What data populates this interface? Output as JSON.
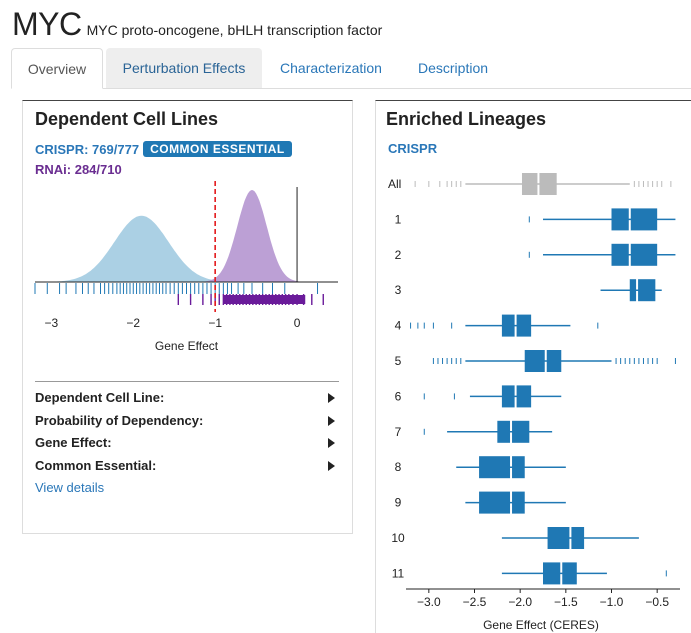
{
  "header": {
    "symbol": "MYC",
    "name": "MYC proto-oncogene, bHLH transcription factor"
  },
  "tabs": [
    {
      "label": "Overview",
      "active": true
    },
    {
      "label": "Perturbation Effects",
      "active": false
    },
    {
      "label": "Characterization",
      "active": false
    },
    {
      "label": "Description",
      "active": false
    }
  ],
  "left_panel": {
    "title": "Dependent Cell Lines",
    "crispr_text": "CRISPR: 769/777",
    "badge": "COMMON ESSENTIAL",
    "rnai_text": "RNAi: 284/710",
    "details": [
      {
        "label": "Dependent Cell Line:"
      },
      {
        "label": "Probability of Dependency:"
      },
      {
        "label": "Gene Effect:"
      },
      {
        "label": "Common Essential:"
      }
    ],
    "view_details": "View details"
  },
  "right_panel": {
    "title": "Enriched Lineages",
    "crispr_label": "CRISPR"
  },
  "colors": {
    "crispr": "#1f78b4",
    "crispr_density": "#a6cee3",
    "rnai": "#6a1b9a",
    "rnai_density": "#b08fce",
    "threshold": "#e31a1c",
    "all_box": "#bbbbbb"
  },
  "chart_data": [
    {
      "type": "area",
      "xlabel": "Gene Effect",
      "xlim": [
        -3.2,
        0.5
      ],
      "xticks": [
        -3,
        -2,
        -1,
        0
      ],
      "xtick_labels": [
        "−3",
        "−2",
        "−1",
        "0"
      ],
      "threshold": -1,
      "series": [
        {
          "name": "CRISPR",
          "peak": -1.9,
          "sd": 0.33,
          "height": 0.72
        },
        {
          "name": "RNAi",
          "peak": -0.55,
          "sd": 0.18,
          "height": 1.0
        }
      ],
      "rugs": {
        "crispr": [
          -3.2,
          -3.05,
          -2.9,
          -2.82,
          -2.7,
          -2.62,
          -2.55,
          -2.48,
          -2.4,
          -2.35,
          -2.3,
          -2.25,
          -2.2,
          -2.16,
          -2.12,
          -2.08,
          -2.04,
          -2.0,
          -1.96,
          -1.92,
          -1.88,
          -1.84,
          -1.8,
          -1.76,
          -1.72,
          -1.68,
          -1.64,
          -1.6,
          -1.55,
          -1.5,
          -1.45,
          -1.4,
          -1.35,
          -1.3,
          -1.25,
          -1.2,
          -1.15,
          -1.1,
          -1.05,
          -1.0,
          -0.95,
          -0.9,
          -0.85,
          -0.8,
          -0.72,
          -0.65,
          -0.55,
          -0.42,
          -0.3,
          -0.15,
          0.25
        ],
        "rnai": [
          -1.45,
          -1.3,
          -1.15,
          -1.05,
          -1.0,
          -0.95,
          -0.9,
          -0.86,
          -0.82,
          -0.78,
          -0.74,
          -0.7,
          -0.66,
          -0.62,
          -0.58,
          -0.54,
          -0.5,
          -0.46,
          -0.42,
          -0.38,
          -0.34,
          -0.3,
          -0.26,
          -0.22,
          -0.18,
          -0.14,
          -0.1,
          -0.05,
          0.0,
          0.08,
          0.18,
          0.32
        ]
      }
    },
    {
      "type": "box",
      "xlabel": "Gene Effect (CERES)",
      "xlim": [
        -3.25,
        -0.25
      ],
      "xticks": [
        -3.0,
        -2.5,
        -2.0,
        -1.5,
        -1.0,
        -0.5
      ],
      "xtick_labels": [
        "−3.0",
        "−2.5",
        "−2.0",
        "−1.5",
        "−1.0",
        "−0.5"
      ],
      "categories": [
        "All",
        "1",
        "2",
        "3",
        "4",
        "5",
        "6",
        "7",
        "8",
        "9",
        "10",
        "11"
      ],
      "boxes": [
        {
          "label": "All",
          "wlo": -2.6,
          "q1": -1.98,
          "med": -1.8,
          "q3": -1.6,
          "whi": -0.8,
          "outliers": [
            -3.15,
            -3.0,
            -2.88,
            -2.8,
            -2.75,
            -2.7,
            -2.65,
            -0.75,
            -0.7,
            -0.65,
            -0.6,
            -0.55,
            -0.5,
            -0.45,
            -0.35
          ]
        },
        {
          "label": "1",
          "wlo": -1.75,
          "q1": -1.0,
          "med": -0.8,
          "q3": -0.5,
          "whi": -0.3,
          "outliers": [
            -1.9
          ]
        },
        {
          "label": "2",
          "wlo": -1.75,
          "q1": -1.0,
          "med": -0.8,
          "q3": -0.5,
          "whi": -0.3,
          "outliers": [
            -1.9
          ]
        },
        {
          "label": "3",
          "wlo": -1.12,
          "q1": -0.8,
          "med": -0.72,
          "q3": -0.52,
          "whi": -0.45,
          "outliers": []
        },
        {
          "label": "4",
          "wlo": -2.6,
          "q1": -2.2,
          "med": -2.05,
          "q3": -1.88,
          "whi": -1.45,
          "outliers": [
            -3.2,
            -3.12,
            -3.05,
            -2.95,
            -2.75,
            -1.15
          ]
        },
        {
          "label": "5",
          "wlo": -2.6,
          "q1": -1.95,
          "med": -1.72,
          "q3": -1.55,
          "whi": -1.0,
          "outliers": [
            -2.95,
            -2.9,
            -2.85,
            -2.8,
            -2.75,
            -2.7,
            -2.65,
            -0.95,
            -0.9,
            -0.85,
            -0.8,
            -0.75,
            -0.7,
            -0.65,
            -0.6,
            -0.55,
            -0.5,
            -0.3
          ]
        },
        {
          "label": "6",
          "wlo": -2.55,
          "q1": -2.2,
          "med": -2.05,
          "q3": -1.88,
          "whi": -1.55,
          "outliers": [
            -3.05,
            -2.72
          ]
        },
        {
          "label": "7",
          "wlo": -2.8,
          "q1": -2.25,
          "med": -2.1,
          "q3": -1.9,
          "whi": -1.65,
          "outliers": [
            -3.05
          ]
        },
        {
          "label": "8",
          "wlo": -2.7,
          "q1": -2.45,
          "med": -2.1,
          "q3": -1.95,
          "whi": -1.5,
          "outliers": []
        },
        {
          "label": "9",
          "wlo": -2.6,
          "q1": -2.45,
          "med": -2.1,
          "q3": -1.95,
          "whi": -1.5,
          "outliers": []
        },
        {
          "label": "10",
          "wlo": -2.2,
          "q1": -1.7,
          "med": -1.45,
          "q3": -1.3,
          "whi": -0.7,
          "outliers": []
        },
        {
          "label": "11",
          "wlo": -2.2,
          "q1": -1.75,
          "med": -1.55,
          "q3": -1.38,
          "whi": -1.05,
          "outliers": [
            -0.4
          ]
        }
      ]
    }
  ]
}
